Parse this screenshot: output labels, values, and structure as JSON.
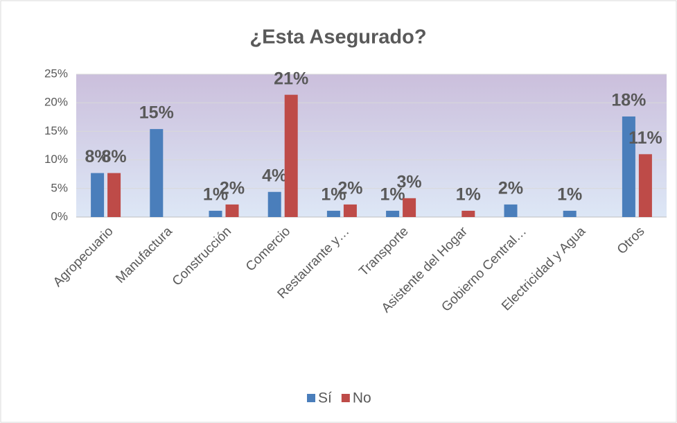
{
  "chart_data": {
    "type": "bar",
    "title": "¿Esta Asegurado?",
    "categories": [
      "Agropecuario",
      "Manufactura",
      "Construcción",
      "Comercio",
      "Restaurante y…",
      "Transporte",
      "Asistente del Hogar",
      "Gobierno Central…",
      "Electricidad y Agua",
      "Otros"
    ],
    "series": [
      {
        "name": "Sí",
        "color": "#4a7ebb",
        "values": [
          7.7,
          15.4,
          1.1,
          4.4,
          1.1,
          1.1,
          null,
          2.2,
          1.1,
          17.6
        ],
        "value_labels": [
          "8%",
          "15%",
          "1%",
          "4%",
          "1%",
          "1%",
          null,
          "2%",
          "1%",
          "18%"
        ]
      },
      {
        "name": "No",
        "color": "#be4b48",
        "values": [
          7.7,
          null,
          2.2,
          21.4,
          2.2,
          3.3,
          1.1,
          null,
          null,
          11
        ],
        "value_labels": [
          "8%",
          null,
          "2%",
          "21%",
          "2%",
          "3%",
          "1%",
          null,
          null,
          "11%"
        ]
      }
    ],
    "ylim": [
      0,
      25
    ],
    "yticks": [
      {
        "value": 0,
        "label": "0%"
      },
      {
        "value": 5,
        "label": "5%"
      },
      {
        "value": 10,
        "label": "10%"
      },
      {
        "value": 15,
        "label": "15%"
      },
      {
        "value": 20,
        "label": "20%"
      },
      {
        "value": 25,
        "label": "25%"
      }
    ],
    "grid": true,
    "legend": "bottom"
  }
}
